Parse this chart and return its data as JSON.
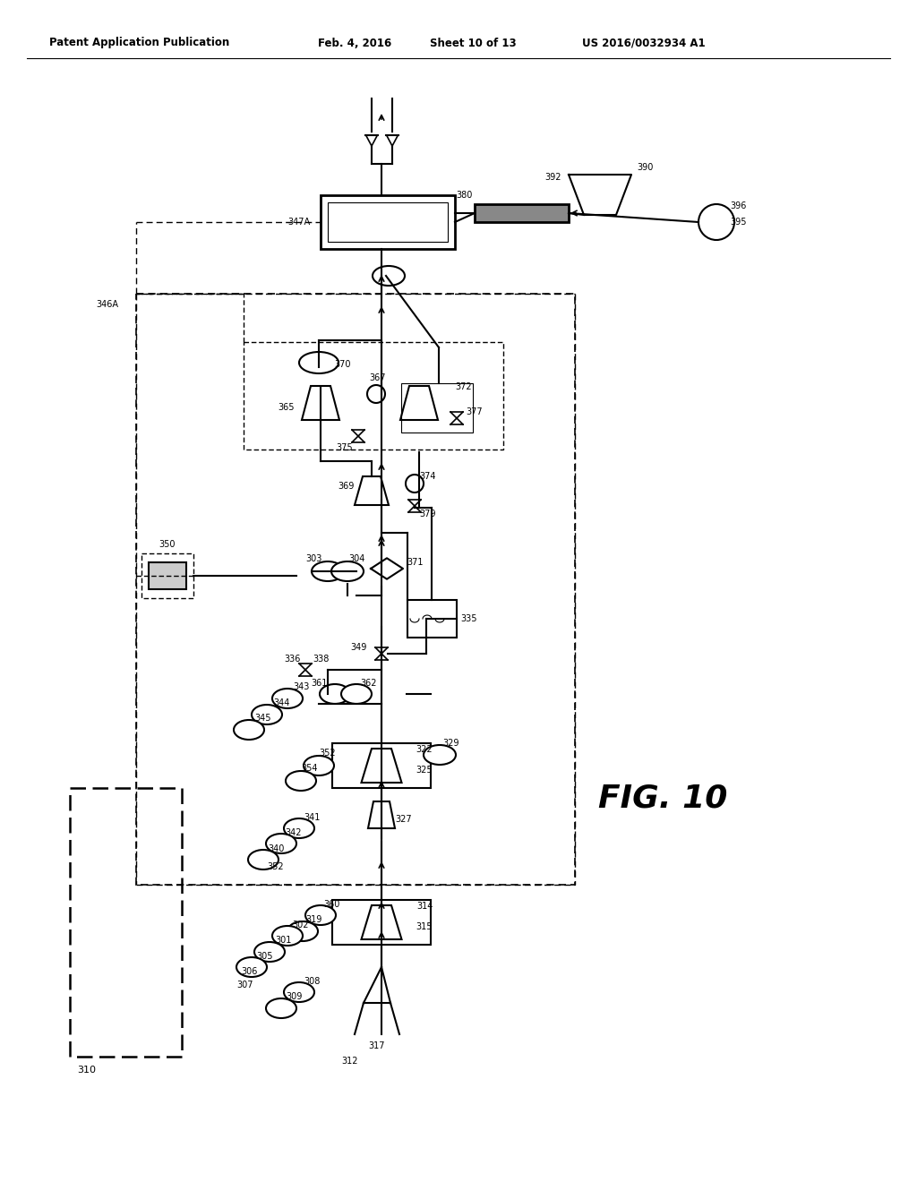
{
  "title_line1": "Patent Application Publication",
  "title_date": "Feb. 4, 2016",
  "title_sheet": "Sheet 10 of 13",
  "title_patent": "US 2016/0032934 A1",
  "fig_label": "FIG. 10",
  "bg_color": "#ffffff",
  "line_color": "#000000"
}
